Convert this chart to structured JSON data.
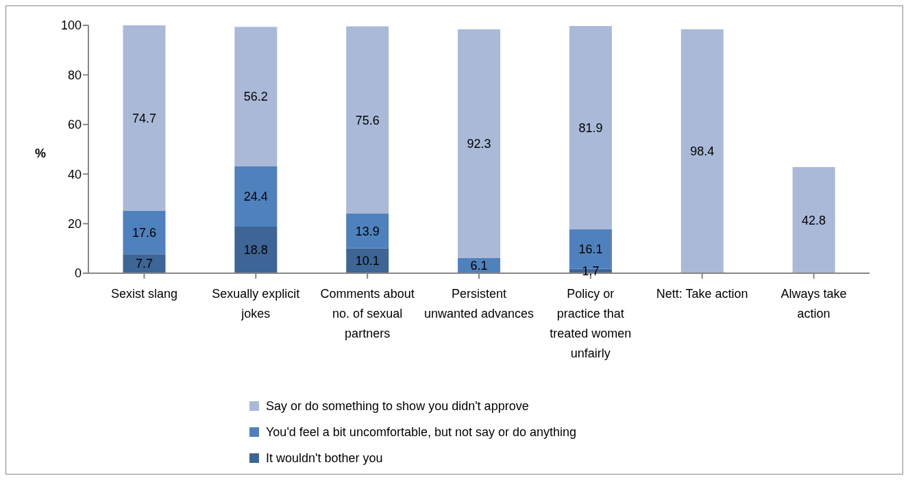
{
  "chart_data": {
    "type": "bar",
    "stacked": true,
    "ylabel": "%",
    "categories": [
      "Sexist slang",
      "Sexually explicit jokes",
      "Comments about no. of sexual partners",
      "Persistent unwanted advances",
      "Policy or practice that treated women unfairly",
      "Nett: Take action",
      "Always take action"
    ],
    "series": [
      {
        "name": "It wouldn't bother you",
        "color": "#3d6596",
        "values": [
          7.7,
          18.8,
          10.1,
          null,
          1.7,
          null,
          null
        ]
      },
      {
        "name": "You'd feel a bit uncomfortable, but not say or do anything",
        "color": "#4f81bd",
        "values": [
          17.6,
          24.4,
          13.9,
          6.1,
          16.1,
          null,
          null
        ]
      },
      {
        "name": "Say or do something to show you didn't approve",
        "color": "#aab9d8",
        "values": [
          74.7,
          56.2,
          75.6,
          92.3,
          81.9,
          98.4,
          42.8
        ]
      }
    ],
    "ylim": [
      0,
      100
    ],
    "yticks": [
      0,
      20,
      40,
      60,
      80,
      100
    ],
    "legend": "bottom",
    "data_labels": true
  }
}
